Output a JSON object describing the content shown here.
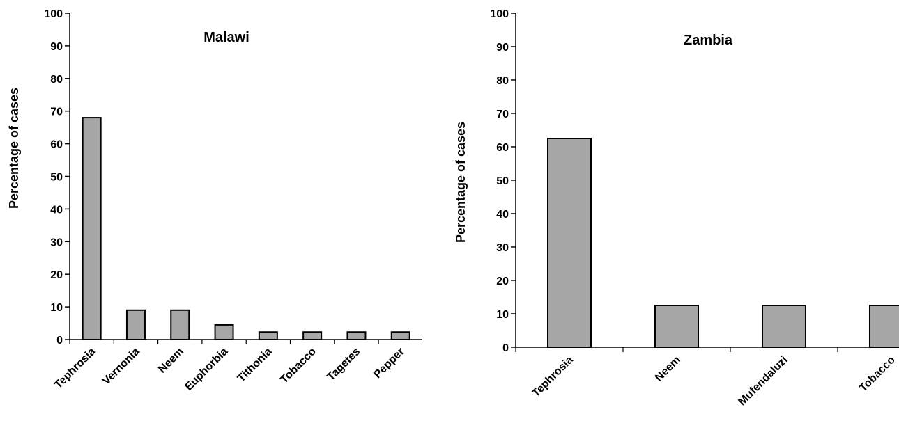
{
  "chart_data": [
    {
      "type": "bar",
      "title": "Malawi",
      "xlabel": "",
      "ylabel": "Percentage of cases",
      "ylim": [
        0,
        100
      ],
      "yticks": [
        0,
        10,
        20,
        30,
        40,
        50,
        60,
        70,
        80,
        90,
        100
      ],
      "grid": false,
      "categories": [
        "Tephrosia",
        "Vernonia",
        "Neem",
        "Euphorbia",
        "Tithonia",
        "Tobacco",
        "Tagetes",
        "Pepper"
      ],
      "values": [
        68,
        9,
        9,
        4.5,
        2.3,
        2.3,
        2.3,
        2.3
      ],
      "bar_color": "#a6a6a6"
    },
    {
      "type": "bar",
      "title": "Zambia",
      "xlabel": "",
      "ylabel": "Percentage of cases",
      "ylim": [
        0,
        100
      ],
      "yticks": [
        0,
        10,
        20,
        30,
        40,
        50,
        60,
        70,
        80,
        90,
        100
      ],
      "grid": false,
      "categories": [
        "Tephrosia",
        "Neem",
        "Mufendaluzi",
        "Tobacco"
      ],
      "values": [
        62.5,
        12.5,
        12.5,
        12.5
      ],
      "bar_color": "#a6a6a6"
    }
  ]
}
